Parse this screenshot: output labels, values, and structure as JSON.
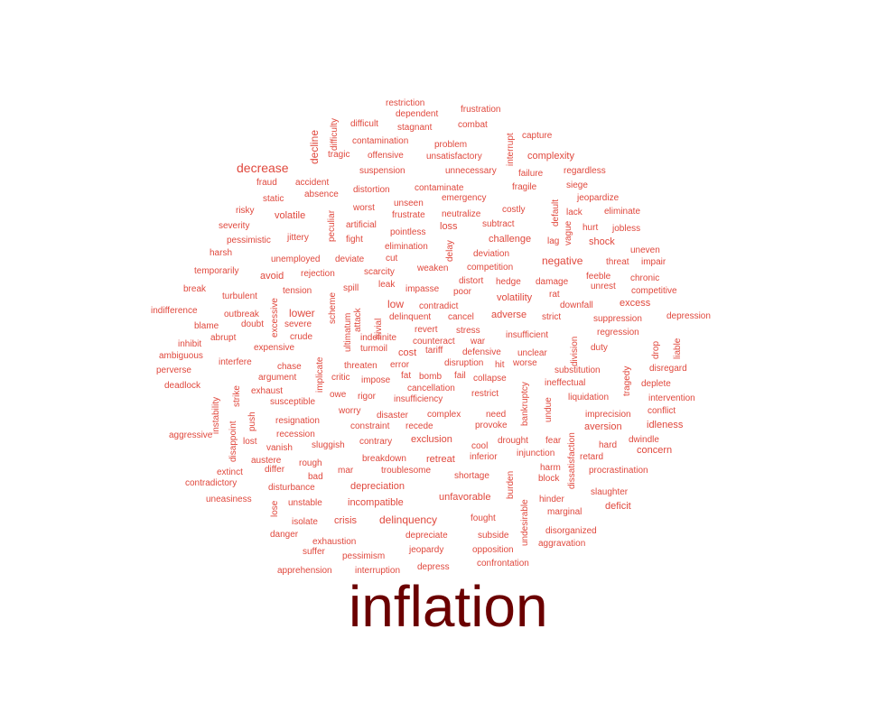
{
  "hero_word": "inflation",
  "colors": {
    "word": "#e0483d",
    "hero": "#6b0000",
    "background": "#ffffff"
  },
  "words": [
    "restriction",
    "frustration",
    "dependent",
    "difficulty",
    "difficult",
    "combat",
    "stagnant",
    "interrupt",
    "capture",
    "contamination",
    "problem",
    "decline",
    "tragic",
    "offensive",
    "unsatisfactory",
    "complexity",
    "decrease",
    "suspension",
    "unnecessary",
    "failure",
    "regardless",
    "fraud",
    "accident",
    "distortion",
    "contaminate",
    "fragile",
    "siege",
    "absence",
    "static",
    "unseen",
    "emergency",
    "default",
    "jeopardize",
    "risky",
    "worst",
    "frustrate",
    "neutralize",
    "costly",
    "lack",
    "eliminate",
    "volatile",
    "peculiar",
    "artificial",
    "loss",
    "subtract",
    "vague",
    "hurt",
    "jobless",
    "severity",
    "pointless",
    "jittery",
    "pessimistic",
    "fight",
    "challenge",
    "lag",
    "shock",
    "harsh",
    "elimination",
    "delay",
    "uneven",
    "unemployed",
    "deviate",
    "cut",
    "deviation",
    "negative",
    "threat",
    "impair",
    "temporarily",
    "rejection",
    "scarcity",
    "weaken",
    "competition",
    "avoid",
    "feeble",
    "chronic",
    "break",
    "spill",
    "distort",
    "hedge",
    "damage",
    "unrest",
    "competitive",
    "turbulent",
    "tension",
    "leak",
    "impasse",
    "poor",
    "rat",
    "lower",
    "volatility",
    "excess",
    "indifference",
    "excessive",
    "low",
    "contradict",
    "downfall",
    "outbreak",
    "scheme",
    "attack",
    "trivial",
    "adverse",
    "strict",
    "suppression",
    "depression",
    "blame",
    "doubt",
    "severe",
    "delinquent",
    "cancel",
    "abrupt",
    "crude",
    "ultimatum",
    "indefinite",
    "revert",
    "stress",
    "insufficient",
    "regression",
    "inhibit",
    "expensive",
    "turmoil",
    "counteract",
    "war",
    "division",
    "drop",
    "liable",
    "ambiguous",
    "implicate",
    "cost",
    "tariff",
    "defensive",
    "unclear",
    "duty",
    "interfere",
    "threaten",
    "error",
    "disruption",
    "hit",
    "worse",
    "perverse",
    "chase",
    "critic",
    "fat",
    "bomb",
    "fail",
    "collapse",
    "substitution",
    "tragedy",
    "disregard",
    "argument",
    "impose",
    "cancellation",
    "ineffectual",
    "deadlock",
    "exhaust",
    "rigor",
    "restrict",
    "bankruptcy",
    "deplete",
    "instability",
    "strike",
    "susceptible",
    "owe",
    "insufficiency",
    "liquidation",
    "intervention",
    "worry",
    "disaster",
    "complex",
    "need",
    "undue",
    "imprecision",
    "conflict",
    "resignation",
    "constraint",
    "recede",
    "provoke",
    "aversion",
    "idleness",
    "push",
    "recession",
    "exclusion",
    "dwindle",
    "aggressive",
    "disappoint",
    "lost",
    "contrary",
    "cool",
    "drought",
    "fear",
    "hard",
    "vanish",
    "sluggish",
    "inferior",
    "injunction",
    "concern",
    "austere",
    "rough",
    "breakdown",
    "retreat",
    "dissatisfaction",
    "retard",
    "extinct",
    "differ",
    "mar",
    "troublesome",
    "harm",
    "procrastination",
    "bad",
    "shortage",
    "burden",
    "block",
    "contradictory",
    "disturbance",
    "depreciation",
    "slaughter",
    "unfavorable",
    "uneasiness",
    "unstable",
    "incompatible",
    "hinder",
    "deficit",
    "lose",
    "undesirable",
    "marginal",
    "isolate",
    "crisis",
    "delinquency",
    "fought",
    "danger",
    "disorganized",
    "depreciate",
    "subside",
    "exhaustion",
    "aggravation",
    "suffer",
    "pessimism",
    "jeopardy",
    "opposition",
    "confrontation",
    "apprehension",
    "interruption",
    "depress"
  ]
}
